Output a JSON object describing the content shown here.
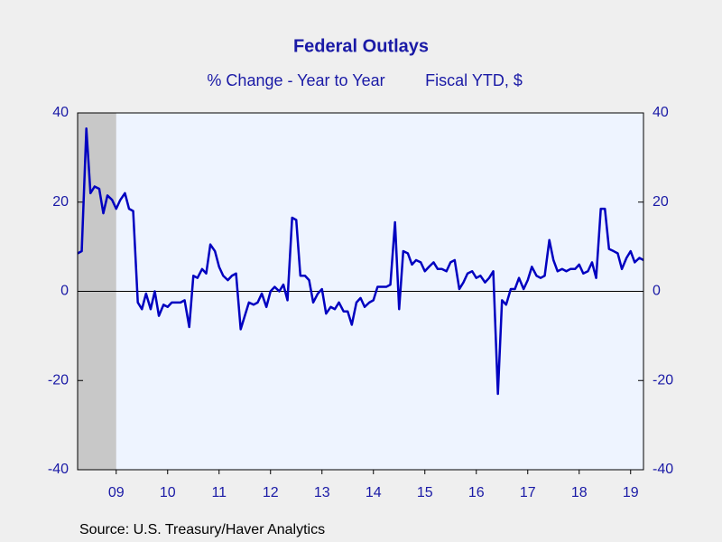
{
  "chart_data": {
    "type": "line",
    "title": "Federal Outlays",
    "subtitle": [
      "% Change - Year to Year",
      "Fiscal YTD, $"
    ],
    "source": "Source:  U.S. Treasury/Haver Analytics",
    "x": [
      2008.75,
      2008.83,
      2008.92,
      2009,
      2009.08,
      2009.17,
      2009.25,
      2009.33,
      2009.42,
      2009.5,
      2009.58,
      2009.67,
      2009.75,
      2009.83,
      2009.92,
      2010,
      2010.08,
      2010.17,
      2010.25,
      2010.33,
      2010.42,
      2010.5,
      2010.58,
      2010.67,
      2010.75,
      2010.83,
      2010.92,
      2011,
      2011.08,
      2011.17,
      2011.25,
      2011.33,
      2011.42,
      2011.5,
      2011.58,
      2011.67,
      2011.75,
      2011.83,
      2011.92,
      2012,
      2012.08,
      2012.17,
      2012.25,
      2012.33,
      2012.42,
      2012.5,
      2012.58,
      2012.67,
      2012.75,
      2012.83,
      2012.92,
      2013,
      2013.08,
      2013.17,
      2013.25,
      2013.33,
      2013.42,
      2013.5,
      2013.58,
      2013.67,
      2013.75,
      2013.83,
      2013.92,
      2014,
      2014.08,
      2014.17,
      2014.25,
      2014.33,
      2014.42,
      2014.5,
      2014.58,
      2014.67,
      2014.75,
      2014.83,
      2014.92,
      2015,
      2015.08,
      2015.17,
      2015.25,
      2015.33,
      2015.42,
      2015.5,
      2015.58,
      2015.67,
      2015.75,
      2015.83,
      2015.92,
      2016,
      2016.08,
      2016.17,
      2016.25,
      2016.33,
      2016.42,
      2016.5,
      2016.58,
      2016.67,
      2016.75,
      2016.83,
      2016.92,
      2017,
      2017.08,
      2017.17,
      2017.25,
      2017.33,
      2017.42,
      2017.5,
      2017.58,
      2017.67,
      2017.75,
      2017.83,
      2017.92,
      2018,
      2018.08,
      2018.17,
      2018.25,
      2018.33,
      2018.42,
      2018.5,
      2018.58,
      2018.67,
      2018.75,
      2018.83,
      2018.92,
      2019,
      2019.08,
      2019.17,
      2019.25,
      2019.33,
      2019.42,
      2019.5,
      2019.58,
      2019.67,
      2019.75
    ],
    "series": [
      {
        "color": "#0000c0",
        "values": [
          8.5,
          9,
          36.5,
          22,
          23.5,
          23,
          17.5,
          21.5,
          20.5,
          18.5,
          20.5,
          22,
          18.5,
          18,
          -2.5,
          -4,
          -0.5,
          -4,
          0,
          -5.5,
          -3,
          -3.5,
          -2.5,
          -2.5,
          -2.5,
          -2,
          -8,
          3.5,
          3,
          5,
          4,
          10.5,
          9,
          5.5,
          3.5,
          2.5,
          3.5,
          4,
          -8.5,
          -5.5,
          -2.5,
          -3,
          -2.5,
          -0.5,
          -3.5,
          0,
          1,
          0,
          1.5,
          -2,
          16.5,
          16,
          3.5,
          3.5,
          2.5,
          -2.5,
          -0.5,
          0.5,
          -5,
          -3.5,
          -4,
          -2.5,
          -4.5,
          -4.5,
          -7.5,
          -2.5,
          -1.5,
          -3.5,
          -2.5,
          -2,
          1,
          1,
          1,
          1.5,
          15.5,
          -4,
          9,
          8.5,
          6,
          7,
          6.5,
          4.5,
          5.5,
          6.5,
          5,
          5,
          4.5,
          6.5,
          7,
          0.5,
          2,
          4,
          4.5,
          3,
          3.5,
          2,
          3,
          4.5,
          -23,
          -2,
          -3,
          0.5,
          0.5,
          3,
          0.5,
          2.5,
          5.5,
          3.5,
          3,
          3.5,
          11.5,
          7,
          4.5,
          5,
          4.5,
          5,
          5,
          6,
          4,
          4.5,
          6.5,
          3,
          18.5,
          18.5,
          9.5,
          9,
          8.5,
          5,
          7.5,
          9,
          6.5,
          7.5,
          7
        ]
      }
    ],
    "xlim": [
      2008.75,
      2019.75
    ],
    "xticks": [
      {
        "value": 2009.5,
        "label": "09"
      },
      {
        "value": 2010.5,
        "label": "10"
      },
      {
        "value": 2011.5,
        "label": "11"
      },
      {
        "value": 2012.5,
        "label": "12"
      },
      {
        "value": 2013.5,
        "label": "13"
      },
      {
        "value": 2014.5,
        "label": "14"
      },
      {
        "value": 2015.5,
        "label": "15"
      },
      {
        "value": 2016.5,
        "label": "16"
      },
      {
        "value": 2017.5,
        "label": "17"
      },
      {
        "value": 2018.5,
        "label": "18"
      },
      {
        "value": 2019.5,
        "label": "19"
      }
    ],
    "ylim": [
      -40,
      40
    ],
    "yticks": [
      -40,
      -20,
      0,
      20,
      40
    ],
    "recession": [
      2008.75,
      2009.5
    ]
  }
}
